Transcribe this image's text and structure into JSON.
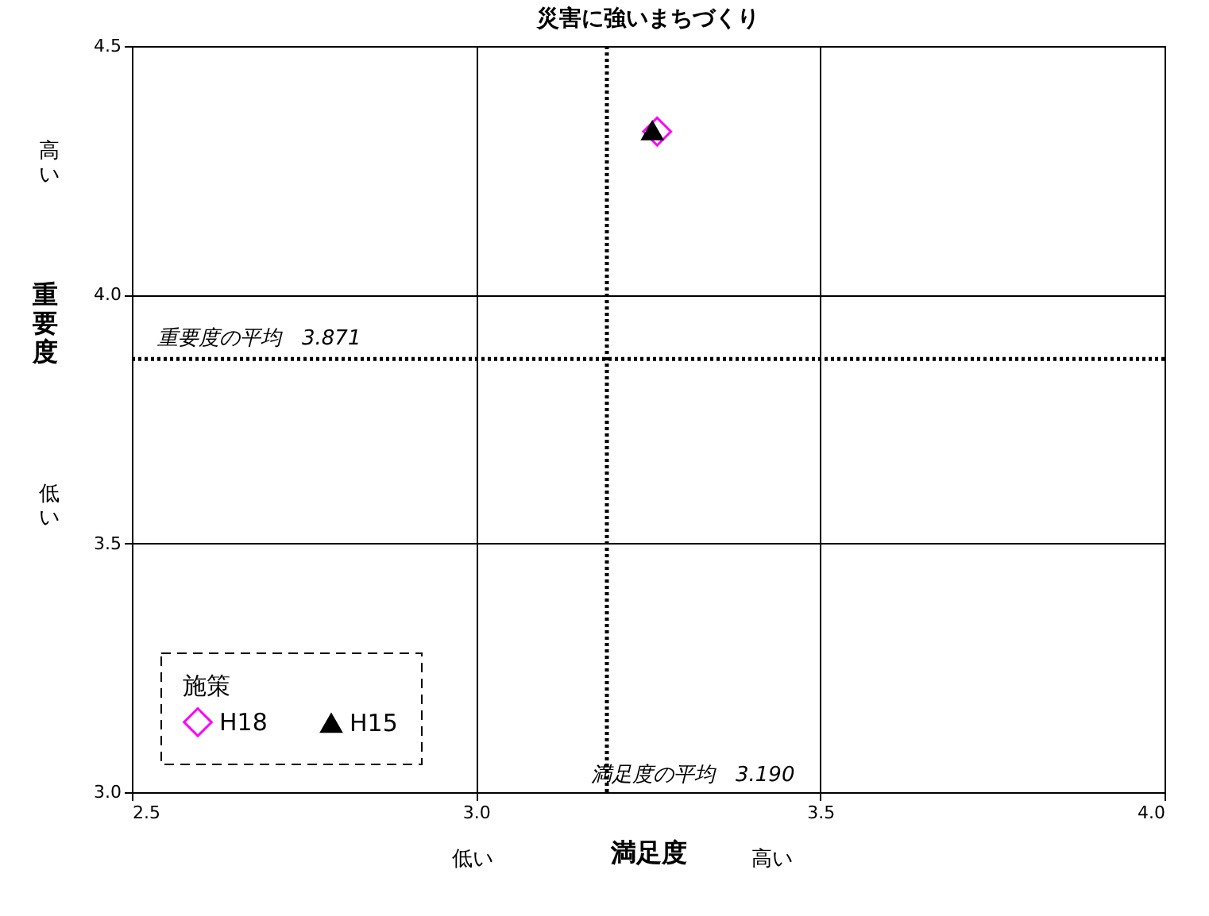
{
  "chart_data": {
    "type": "scatter",
    "title": "災害に強いまちづくり",
    "xlabel": "満足度",
    "ylabel": "重要度",
    "legend_title": "施策",
    "series": [
      {
        "name": "H18",
        "color": "#ff00ff",
        "marker": "diamond",
        "x": [
          3.263
        ],
        "values": [
          4.328
        ]
      },
      {
        "name": "H15",
        "color": "#000000",
        "marker": "triangle",
        "x": [
          3.256
        ],
        "values": [
          4.33
        ]
      }
    ],
    "xlim": [
      2.5,
      4.0
    ],
    "xticks": [
      2.5,
      {
        "value": 3,
        "label": "3.0"
      },
      3.5,
      {
        "value": 4,
        "label": "4.0"
      }
    ],
    "ylim": [
      3.0,
      4.5
    ],
    "yticks": [
      {
        "value": 3,
        "label": "3.0"
      },
      3.5,
      {
        "value": 4,
        "label": "4.0"
      },
      4.5
    ],
    "grid": true,
    "legend": "bottom left",
    "ref_lines": [
      {
        "axis": "y",
        "value": 3.871,
        "label": "重要度の平均　3.871",
        "color": "#000000",
        "line_style": "dotted"
      },
      {
        "axis": "x",
        "value": 3.19,
        "label": "満足度の平均　3.190",
        "color": "#000000",
        "line_style": "dotted"
      }
    ],
    "annotations": [
      "高い",
      "低い",
      "低い",
      "高い"
    ]
  }
}
